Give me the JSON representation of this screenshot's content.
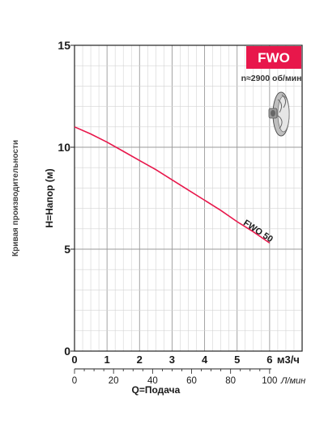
{
  "chart_data": {
    "type": "line",
    "side_title": "Кривая производительности",
    "ylabel": "H=Напор (м)",
    "xlabel": "Q=Подача",
    "x_unit_primary": "м3/ч",
    "x_unit_secondary": "Л/мин",
    "xlim": [
      0,
      7
    ],
    "ylim": [
      0,
      15
    ],
    "x_ticks_m3h": [
      "0",
      "1",
      "2",
      "3",
      "4",
      "5",
      "6"
    ],
    "x_ticks_lpm": [
      "0",
      "20",
      "40",
      "60",
      "80",
      "100"
    ],
    "x_ticks_lpm_values": [
      0,
      20,
      40,
      60,
      80,
      100
    ],
    "y_ticks": [
      "0",
      "5",
      "10",
      "15"
    ],
    "y_ticks_values": [
      0,
      5,
      10,
      15
    ],
    "badge": "FWO",
    "speed": "n≈2900 об/мин",
    "series": [
      {
        "name": "FWO 50",
        "color": "#e8174b",
        "x": [
          0,
          0.5,
          1,
          1.5,
          2,
          2.5,
          3,
          3.5,
          4,
          4.5,
          5,
          5.5,
          6
        ],
        "y": [
          11.0,
          10.65,
          10.25,
          9.8,
          9.35,
          8.9,
          8.4,
          7.9,
          7.4,
          6.9,
          6.35,
          5.85,
          5.3
        ]
      }
    ],
    "grid": true,
    "badge_color": "#e8174b"
  }
}
